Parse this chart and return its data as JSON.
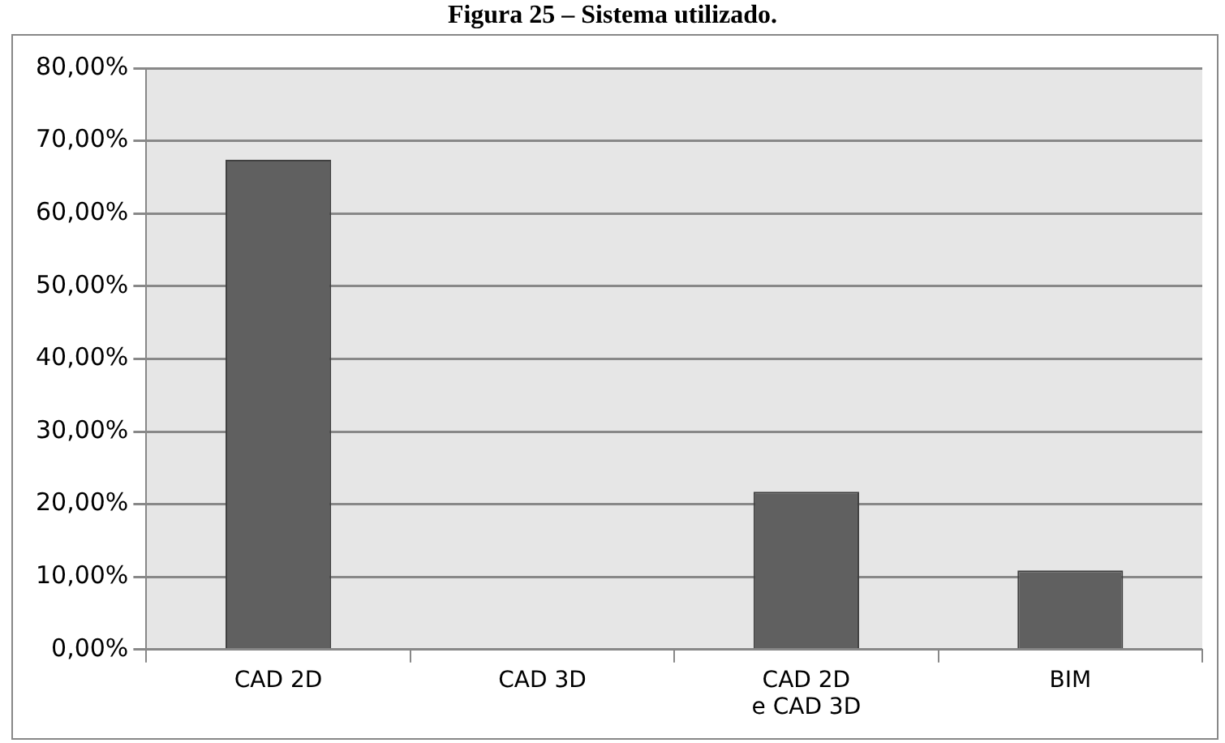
{
  "chart_data": {
    "type": "bar",
    "title": "Figura 25 – Sistema utilizado.",
    "categories": [
      "CAD 2D",
      "CAD 3D",
      "CAD 2D\ne CAD 3D",
      "BIM"
    ],
    "values": [
      67.4,
      0,
      21.7,
      10.9
    ],
    "color": "#606060",
    "ylim": [
      0,
      80
    ],
    "yticks": [
      {
        "value": 0,
        "label": "0,00%"
      },
      {
        "value": 10,
        "label": "10,00%"
      },
      {
        "value": 20,
        "label": "20,00%"
      },
      {
        "value": 30,
        "label": "30,00%"
      },
      {
        "value": 40,
        "label": "40,00%"
      },
      {
        "value": 50,
        "label": "50,00%"
      },
      {
        "value": 60,
        "label": "60,00%"
      },
      {
        "value": 70,
        "label": "70,00%"
      },
      {
        "value": 80,
        "label": "80,00%"
      }
    ],
    "grid": "y",
    "legend": false
  }
}
